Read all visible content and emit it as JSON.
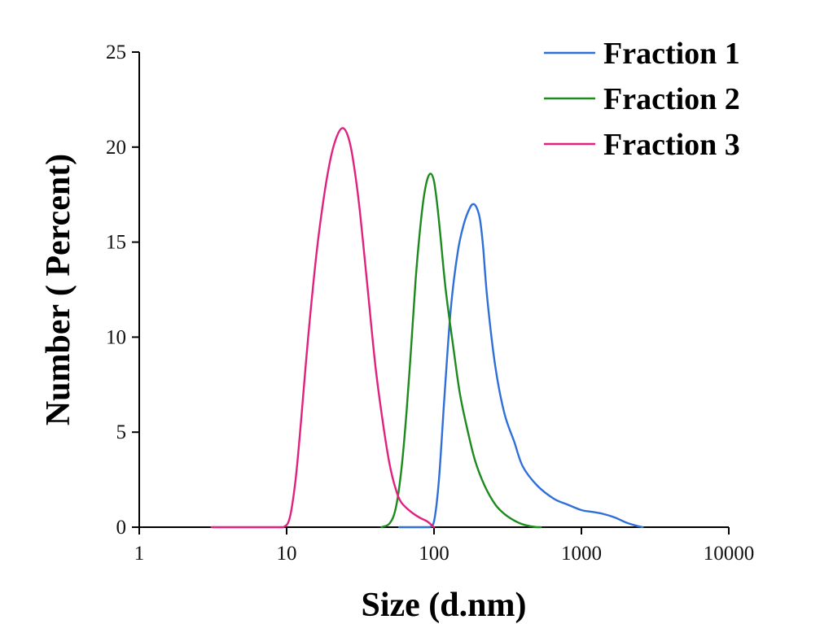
{
  "chart_data": {
    "type": "line",
    "title": "",
    "xlabel": "Size (d.nm)",
    "ylabel": "Number ( Percent)",
    "x_scale": "log",
    "xlim": [
      1,
      10000
    ],
    "ylim": [
      0,
      25
    ],
    "x_ticks": [
      1,
      10,
      100,
      1000,
      10000
    ],
    "x_tick_labels": [
      "1",
      "10",
      "100",
      "1000",
      "10000"
    ],
    "y_ticks": [
      0,
      5,
      10,
      15,
      20,
      25
    ],
    "y_tick_labels": [
      "0",
      "5",
      "10",
      "15",
      "20",
      "25"
    ],
    "grid": false,
    "legend_position": "top-right",
    "series": [
      {
        "name": "Fraction 1",
        "color": "#2f6fd8",
        "x": [
          58,
          80,
          93,
          100,
          108,
          118,
          130,
          145,
          160,
          175,
          185,
          195,
          205,
          215,
          230,
          260,
          300,
          350,
          400,
          500,
          650,
          800,
          1000,
          1200,
          1400,
          1700,
          2000,
          2300,
          2600
        ],
        "y": [
          0,
          0,
          0,
          0.3,
          2.5,
          7,
          11.5,
          14.5,
          16,
          16.8,
          17,
          16.8,
          16.2,
          14.8,
          12,
          8.5,
          6,
          4.5,
          3.2,
          2.2,
          1.5,
          1.2,
          0.9,
          0.8,
          0.7,
          0.5,
          0.25,
          0.1,
          0
        ]
      },
      {
        "name": "Fraction 2",
        "color": "#1d8a1d",
        "x": [
          44,
          50,
          55,
          60,
          65,
          70,
          75,
          80,
          85,
          90,
          95,
          100,
          105,
          110,
          120,
          135,
          150,
          170,
          190,
          220,
          260,
          300,
          350,
          400,
          450,
          500,
          530
        ],
        "y": [
          0,
          0.2,
          1,
          3,
          6,
          9.5,
          13,
          15.5,
          17.3,
          18.3,
          18.6,
          18.2,
          17,
          15.5,
          12.5,
          9.5,
          7,
          5,
          3.5,
          2.2,
          1.2,
          0.7,
          0.35,
          0.15,
          0.05,
          0,
          0
        ]
      },
      {
        "name": "Fraction 3",
        "color": "#e0217f",
        "x": [
          3.1,
          5,
          8,
          9.5,
          10.5,
          11.5,
          12.5,
          14,
          16,
          18,
          20,
          22,
          24,
          26,
          28,
          31,
          35,
          40,
          45,
          50,
          55,
          60,
          70,
          80,
          90,
          100
        ],
        "y": [
          0,
          0,
          0,
          0,
          0.5,
          2.5,
          5.5,
          10,
          14.5,
          17.5,
          19.5,
          20.6,
          21,
          20.6,
          19.5,
          17,
          13,
          8.5,
          5.5,
          3.3,
          2,
          1.3,
          0.8,
          0.5,
          0.3,
          0
        ]
      }
    ]
  }
}
